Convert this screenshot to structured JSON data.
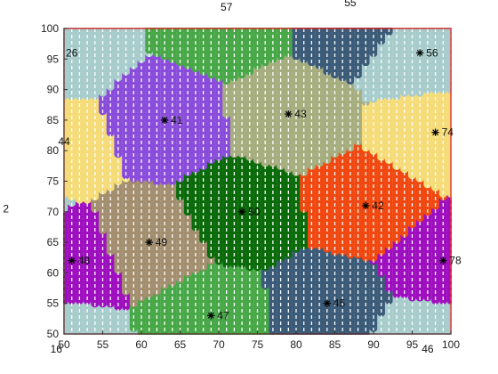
{
  "chart_data": {
    "type": "scatter",
    "title": "",
    "xlabel": "",
    "ylabel": "",
    "xlim": [
      50,
      100
    ],
    "ylim": [
      50,
      100
    ],
    "x_ticks": [
      "50",
      "55",
      "60",
      "65",
      "70",
      "75",
      "80",
      "85",
      "90",
      "95",
      "100"
    ],
    "y_ticks": [
      "50",
      "55",
      "60",
      "65",
      "70",
      "75",
      "80",
      "85",
      "90",
      "95",
      "100"
    ],
    "grid": false,
    "dot_spacing": 1,
    "colors": {
      "frame": "#e02020",
      "boundary": "#a8cccc",
      "dash": "#ffffff"
    },
    "regions": [
      {
        "label": "41",
        "x": 63,
        "y": 85,
        "color": "#8a4ddb",
        "marker": true
      },
      {
        "label": "43",
        "x": 79,
        "y": 86,
        "color": "#a6ad7e",
        "marker": true
      },
      {
        "label": "74",
        "x": 98,
        "y": 83,
        "color": "#f5dc78",
        "marker": true
      },
      {
        "label": "56",
        "x": 96,
        "y": 96,
        "color": "#a8cccc",
        "marker": true
      },
      {
        "label": "42",
        "x": 89,
        "y": 71,
        "color": "#f04810",
        "marker": true
      },
      {
        "label": "50",
        "x": 73,
        "y": 70,
        "color": "#0b6b0b",
        "marker": true
      },
      {
        "label": "49",
        "x": 61,
        "y": 65,
        "color": "#a38f70",
        "marker": true
      },
      {
        "label": "48",
        "x": 51,
        "y": 62,
        "color": "#9e0fbf",
        "marker": true
      },
      {
        "label": "47",
        "x": 69,
        "y": 53,
        "color": "#48a848",
        "marker": true
      },
      {
        "label": "45",
        "x": 84,
        "y": 55,
        "color": "#3b5b78",
        "marker": true
      },
      {
        "label": "78",
        "x": 99,
        "y": 62,
        "color": "#9e0fbf",
        "marker": true
      },
      {
        "label": "57",
        "x": 71,
        "y": 101,
        "color": "#48a848",
        "marker": false
      },
      {
        "label": "55",
        "x": 87,
        "y": 101,
        "color": "#3b5b78",
        "marker": false
      },
      {
        "label": "26",
        "x": 50,
        "y": 97,
        "color": "#a8cccc",
        "marker": false
      },
      {
        "label": "44",
        "x": 49,
        "y": 81,
        "color": "#f5dc78",
        "marker": false
      },
      {
        "label": "2",
        "x": 42,
        "y": 72,
        "color": "#a8cccc",
        "marker": false
      },
      {
        "label": "16",
        "x": 49,
        "y": 49,
        "color": "#a8cccc",
        "marker": false
      },
      {
        "label": "46",
        "x": 97,
        "y": 49,
        "color": "#a8cccc",
        "marker": false
      }
    ],
    "labels": [
      {
        "text": "41",
        "x": 63,
        "y": 85,
        "marker": true
      },
      {
        "text": "43",
        "x": 79,
        "y": 86,
        "marker": true
      },
      {
        "text": "74",
        "x": 98,
        "y": 83,
        "marker": true
      },
      {
        "text": "56",
        "x": 96,
        "y": 96,
        "marker": true
      },
      {
        "text": "42",
        "x": 89,
        "y": 71,
        "marker": true
      },
      {
        "text": "50",
        "x": 73,
        "y": 70,
        "marker": true
      },
      {
        "text": "49",
        "x": 61,
        "y": 65,
        "marker": true
      },
      {
        "text": "48",
        "x": 51,
        "y": 62,
        "marker": true
      },
      {
        "text": "47",
        "x": 69,
        "y": 53,
        "marker": true
      },
      {
        "text": "45",
        "x": 84,
        "y": 55,
        "marker": true
      },
      {
        "text": "78",
        "x": 99,
        "y": 62,
        "marker": true
      },
      {
        "text": "57",
        "x": 71,
        "y": 103.5,
        "marker": false
      },
      {
        "text": "55",
        "x": 87,
        "y": 104.2,
        "marker": false
      },
      {
        "text": "26",
        "x": 51,
        "y": 96,
        "marker": false
      },
      {
        "text": "44",
        "x": 50,
        "y": 81.5,
        "marker": false
      },
      {
        "text": "2",
        "x": 42.5,
        "y": 70.5,
        "marker": false
      },
      {
        "text": "16",
        "x": 49,
        "y": 47.5,
        "marker": false
      },
      {
        "text": "46",
        "x": 97,
        "y": 47.5,
        "marker": false
      }
    ]
  }
}
